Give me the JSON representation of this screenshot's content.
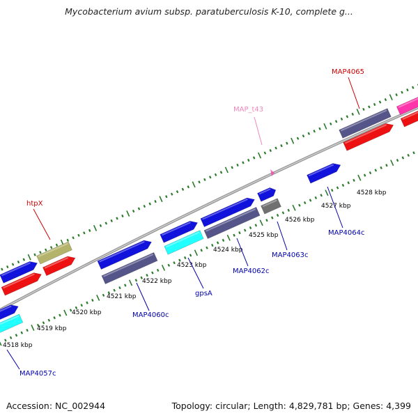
{
  "title": "Mycobacterium avium subsp. paratuberculosis K-10, complete g...",
  "footer": {
    "accession": "Accession: NC_002944",
    "summary": "Topology: circular; Length: 4,829,781 bp; Genes: 4,399"
  },
  "scale_unit": "kbp",
  "ticks": [
    "4518 kbp",
    "4519 kbp",
    "4520 kbp",
    "4521 kbp",
    "4522 kbp",
    "4523 kbp",
    "4524 kbp",
    "4525 kbp",
    "4526 kbp",
    "4527 kbp",
    "4528 kbp"
  ],
  "genes": [
    {
      "label": "MAP4057c",
      "color": "#0000aa"
    },
    {
      "label": "htpX",
      "color": "#cc0000"
    },
    {
      "label": "MAP4060c",
      "color": "#0000aa"
    },
    {
      "label": "gpsA",
      "color": "#0000aa"
    },
    {
      "label": "MAP4062c",
      "color": "#0000aa"
    },
    {
      "label": "MAP4063c",
      "color": "#0000aa"
    },
    {
      "label": "MAP4064c",
      "color": "#0000aa"
    },
    {
      "label": "MAP_t43",
      "color": "#ee88bb"
    },
    {
      "label": "MAP4065",
      "color": "#cc0000"
    }
  ],
  "colors": {
    "blue": "#1212dd",
    "red": "#ee1111",
    "cyan": "#22ffff",
    "olive": "#b3b36b",
    "slate": "#55558a",
    "gray": "#707070",
    "magenta": "#ff33aa",
    "backbone": "#9a9a9a",
    "tick": "#2a7a2a"
  }
}
